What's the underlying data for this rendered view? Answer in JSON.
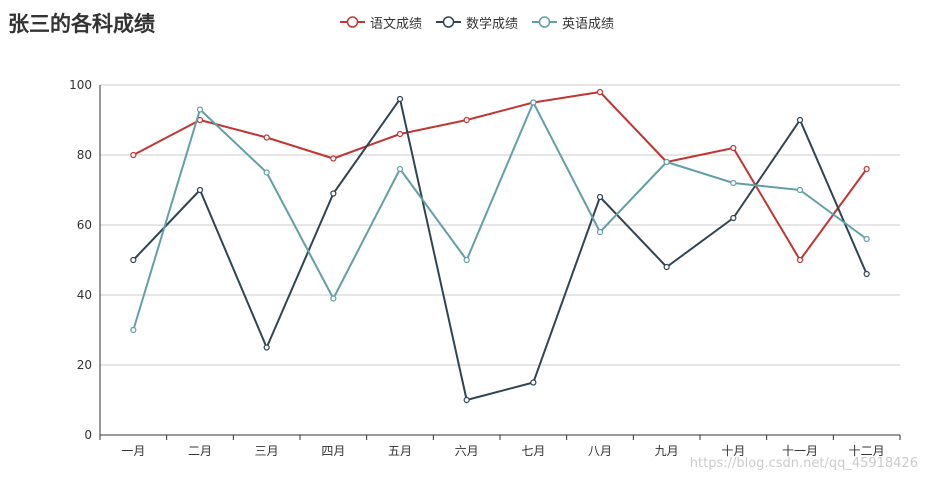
{
  "title": "张三的各科成绩",
  "watermark": "https://blog.csdn.net/qq_45918426",
  "chart_data": {
    "type": "line",
    "categories": [
      "一月",
      "二月",
      "三月",
      "四月",
      "五月",
      "六月",
      "七月",
      "八月",
      "九月",
      "十月",
      "十一月",
      "十二月"
    ],
    "ylim": [
      0,
      100
    ],
    "yticks": [
      0,
      20,
      40,
      60,
      80,
      100
    ],
    "grid": true,
    "legend_position": "top-center",
    "series": [
      {
        "name": "语文成绩",
        "color": "#c23531",
        "values": [
          80,
          90,
          85,
          79,
          86,
          90,
          95,
          98,
          78,
          82,
          50,
          76
        ]
      },
      {
        "name": "数学成绩",
        "color": "#2f4554",
        "values": [
          50,
          70,
          25,
          69,
          96,
          10,
          15,
          68,
          48,
          62,
          90,
          46
        ]
      },
      {
        "name": "英语成绩",
        "color": "#61a0a8",
        "values": [
          30,
          93,
          75,
          39,
          76,
          50,
          95,
          58,
          78,
          72,
          70,
          56
        ]
      }
    ]
  }
}
